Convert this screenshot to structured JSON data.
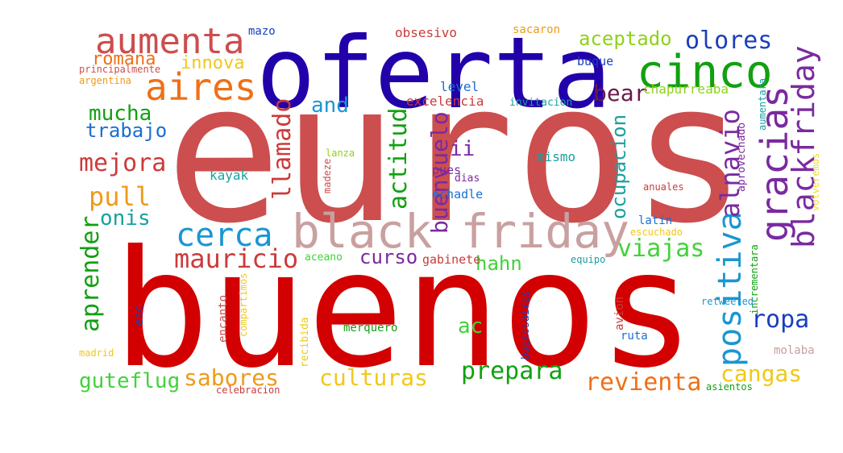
{
  "colors": {
    "background": "#ffffff"
  },
  "cloud": {
    "words": [
      {
        "id": "euros",
        "text": "euros",
        "color": "#cc4e4e"
      },
      {
        "id": "buenos",
        "text": "buenos",
        "color": "#d20000"
      },
      {
        "id": "oferta",
        "text": "oferta",
        "color": "#2200aa"
      },
      {
        "id": "black-friday",
        "text": "black friday",
        "color": "#c9a0a0"
      },
      {
        "id": "aumenta",
        "text": "aumenta",
        "color": "#cc4e4e"
      },
      {
        "id": "aires",
        "text": "aires",
        "color": "#ef7018"
      },
      {
        "id": "cinco",
        "text": "cinco",
        "color": "#12a012"
      },
      {
        "id": "olores",
        "text": "olores",
        "color": "#1a3ebe"
      },
      {
        "id": "aceptado",
        "text": "aceptado",
        "color": "#8ed21a"
      },
      {
        "id": "gracias",
        "text": "gracias",
        "color": "#7a2aa0"
      },
      {
        "id": "blackfriday",
        "text": "blackfriday",
        "color": "#7a2aa0"
      },
      {
        "id": "positiva",
        "text": "positiva",
        "color": "#1a96d2"
      },
      {
        "id": "alnavio",
        "text": "alnavio",
        "color": "#7a2aa0"
      },
      {
        "id": "cerca",
        "text": "cerca",
        "color": "#1a96d2"
      },
      {
        "id": "mauricio",
        "text": "mauricio",
        "color": "#cc3a3a"
      },
      {
        "id": "viajas",
        "text": "viajas",
        "color": "#42d23a"
      },
      {
        "id": "ropa",
        "text": "ropa",
        "color": "#1a3ebe"
      },
      {
        "id": "culturas",
        "text": "culturas",
        "color": "#f0c81a"
      },
      {
        "id": "prepara",
        "text": "prepara",
        "color": "#12a012"
      },
      {
        "id": "revienta",
        "text": "revienta",
        "color": "#ef7018"
      },
      {
        "id": "sabores",
        "text": "sabores",
        "color": "#ef9a18"
      },
      {
        "id": "cangas",
        "text": "cangas",
        "color": "#f0c81a"
      },
      {
        "id": "guteflug",
        "text": "guteflug",
        "color": "#42d23a"
      },
      {
        "id": "aprender",
        "text": "aprender",
        "color": "#12a012"
      },
      {
        "id": "onis",
        "text": "onis",
        "color": "#1aa0a0"
      },
      {
        "id": "pull",
        "text": "pull",
        "color": "#ef9a18"
      },
      {
        "id": "mejora",
        "text": "mejora",
        "color": "#cc3a3a"
      },
      {
        "id": "trabajo",
        "text": "trabajo",
        "color": "#1a6ed2"
      },
      {
        "id": "mucha",
        "text": "mucha",
        "color": "#12a012"
      },
      {
        "id": "romana",
        "text": "romana",
        "color": "#ef7018"
      },
      {
        "id": "innova",
        "text": "innova",
        "color": "#f0c81a"
      },
      {
        "id": "and",
        "text": "and",
        "color": "#1a96d2"
      },
      {
        "id": "llamado",
        "text": "llamado",
        "color": "#cc3a3a"
      },
      {
        "id": "bear",
        "text": "bear",
        "color": "#6a1a4e"
      },
      {
        "id": "actitud",
        "text": "actitud",
        "color": "#12a012"
      },
      {
        "id": "buenvuelo",
        "text": "buenvuelo",
        "color": "#7a2aa0"
      },
      {
        "id": "ii",
        "text": "ii",
        "color": "#7a2aa0"
      },
      {
        "id": "curso",
        "text": "curso",
        "color": "#7a2aa0"
      },
      {
        "id": "hahn",
        "text": "hahn",
        "color": "#42d23a"
      },
      {
        "id": "ac",
        "text": "ac",
        "color": "#42d23a"
      },
      {
        "id": "ocupacion",
        "text": "ocupacion",
        "color": "#1aa0a0"
      },
      {
        "id": "mazo",
        "text": "mazo",
        "color": "#1a3ebe"
      },
      {
        "id": "obsesivo",
        "text": "obsesivo",
        "color": "#cc3a3a"
      },
      {
        "id": "sacaron",
        "text": "sacaron",
        "color": "#ef9a18"
      },
      {
        "id": "principalmente",
        "text": "principalmente",
        "color": "#cc4e4e"
      },
      {
        "id": "argentina",
        "text": "argentina",
        "color": "#ef9a18"
      },
      {
        "id": "buque",
        "text": "buque",
        "color": "#1a3ebe"
      },
      {
        "id": "aumentara",
        "text": "aumentara",
        "color": "#1aa0a0"
      },
      {
        "id": "level",
        "text": "level",
        "color": "#1a6ed2"
      },
      {
        "id": "excelencia",
        "text": "excelencia",
        "color": "#cc3a3a"
      },
      {
        "id": "invitacion",
        "text": "invitacion",
        "color": "#1aa0a0"
      },
      {
        "id": "chapurreaba",
        "text": "chapurreaba",
        "color": "#8ed21a"
      },
      {
        "id": "aprovechado",
        "text": "aprovechado",
        "color": "#7a2aa0"
      },
      {
        "id": "volveremos",
        "text": "volveremos",
        "color": "#f0e01a"
      },
      {
        "id": "lanza",
        "text": "lanza",
        "color": "#8ed21a"
      },
      {
        "id": "kayak",
        "text": "kayak",
        "color": "#1aa0a0"
      },
      {
        "id": "madeze",
        "text": "madeze",
        "color": "#cc4e4e"
      },
      {
        "id": "mismo",
        "text": "mismo",
        "color": "#1aa0a0"
      },
      {
        "id": "pues",
        "text": "pues",
        "color": "#7a2aa0"
      },
      {
        "id": "dias",
        "text": "dias",
        "color": "#7a2aa0"
      },
      {
        "id": "echadle",
        "text": "echadle",
        "color": "#1a6ed2"
      },
      {
        "id": "anuales",
        "text": "anuales",
        "color": "#cc3a3a"
      },
      {
        "id": "latin",
        "text": "latin",
        "color": "#1a6ed2"
      },
      {
        "id": "escuchado",
        "text": "escuchado",
        "color": "#f0c81a"
      },
      {
        "id": "incrementara",
        "text": "incrementara",
        "color": "#12a012"
      },
      {
        "id": "aceano",
        "text": "aceano",
        "color": "#42d23a"
      },
      {
        "id": "gabinete",
        "text": "gabinete",
        "color": "#cc3a3a"
      },
      {
        "id": "equipo",
        "text": "equipo",
        "color": "#1aa0a0"
      },
      {
        "id": "compartimos",
        "text": "compartimos",
        "color": "#f0c81a"
      },
      {
        "id": "encanto",
        "text": "encanto",
        "color": "#cc4e4e"
      },
      {
        "id": "enc",
        "text": "enc",
        "color": "#1a3ebe"
      },
      {
        "id": "recibida",
        "text": "recibida",
        "color": "#f0c81a"
      },
      {
        "id": "merquero",
        "text": "merquero",
        "color": "#12a012"
      },
      {
        "id": "buenosaires",
        "text": "buenosaires",
        "color": "#1a3ebe"
      },
      {
        "id": "avion",
        "text": "avion",
        "color": "#cc3a3a"
      },
      {
        "id": "ruta",
        "text": "ruta",
        "color": "#1a6ed2"
      },
      {
        "id": "retweeted",
        "text": "retweeted",
        "color": "#1a96d2"
      },
      {
        "id": "molaba",
        "text": "molaba",
        "color": "#c9a0a0"
      },
      {
        "id": "madrid",
        "text": "madrid",
        "color": "#f0c81a"
      },
      {
        "id": "celebracion",
        "text": "celebracion",
        "color": "#cc3a3a"
      },
      {
        "id": "asientos",
        "text": "asientos",
        "color": "#12a012"
      }
    ]
  }
}
